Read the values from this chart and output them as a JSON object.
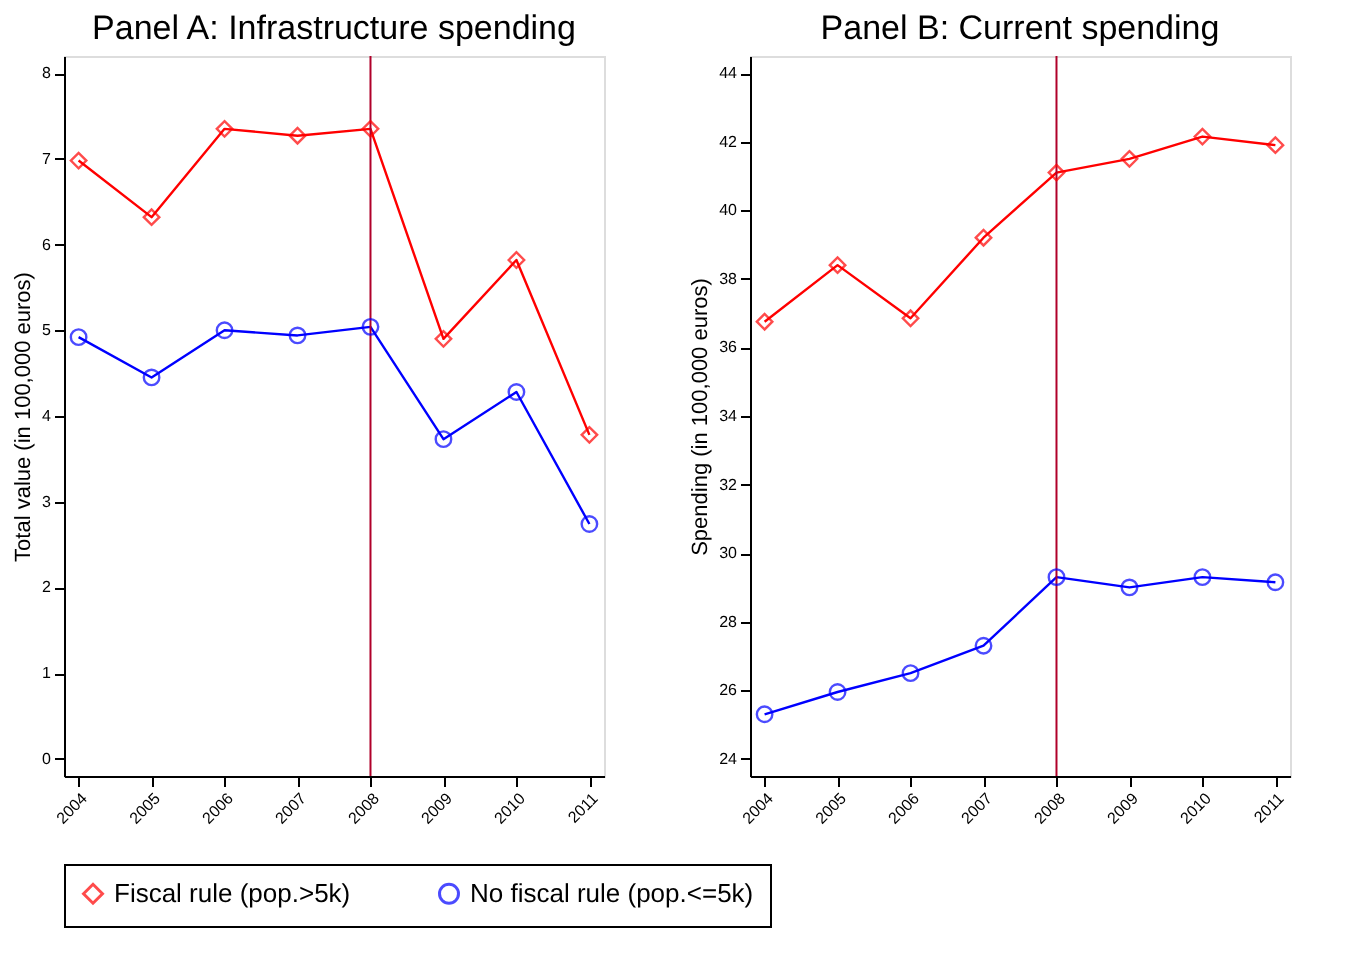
{
  "chart_data": [
    {
      "type": "line",
      "title": "Panel A: Infrastructure spending",
      "ylabel": "Total value (in 100,000 euros)",
      "x": [
        2004,
        2005,
        2006,
        2007,
        2008,
        2009,
        2010,
        2011
      ],
      "series": [
        {
          "name": "Fiscal rule (pop.>5k)",
          "color": "#ff0000",
          "marker": "diamond",
          "values": [
            6.98,
            6.32,
            7.35,
            7.27,
            7.35,
            4.9,
            5.82,
            3.78
          ]
        },
        {
          "name": "No fiscal rule (pop.<=5k)",
          "color": "#0000ff",
          "marker": "circle",
          "values": [
            4.92,
            4.45,
            5.0,
            4.94,
            5.04,
            3.73,
            4.28,
            2.74
          ]
        }
      ],
      "xlim": [
        2003.8,
        2011.2
      ],
      "xticks": [
        2004,
        2005,
        2006,
        2007,
        2008,
        2009,
        2010,
        2011
      ],
      "ylim": [
        -0.2,
        8.2
      ],
      "yticks": [
        0,
        1,
        2,
        3,
        4,
        5,
        6,
        7,
        8
      ],
      "ref_lines": [
        {
          "axis": "x",
          "value": 2008,
          "color": "#b0002a"
        }
      ],
      "grid": false,
      "legend": "bottom",
      "line_style": "solid"
    },
    {
      "type": "line",
      "title": "Panel B: Current spending",
      "ylabel": "Spending (in 100,000 euros)",
      "x": [
        2004,
        2005,
        2006,
        2007,
        2008,
        2009,
        2010,
        2011
      ],
      "series": [
        {
          "name": "Fiscal rule (pop.>5k)",
          "color": "#ff0000",
          "marker": "diamond",
          "values": [
            36.75,
            38.4,
            36.85,
            39.2,
            41.1,
            41.5,
            42.15,
            41.9
          ]
        },
        {
          "name": "No fiscal rule (pop.<=5k)",
          "color": "#0000ff",
          "marker": "circle",
          "values": [
            25.3,
            25.95,
            26.5,
            27.3,
            29.3,
            29.0,
            29.3,
            29.15
          ]
        }
      ],
      "xlim": [
        2003.8,
        2011.2
      ],
      "xticks": [
        2004,
        2005,
        2006,
        2007,
        2008,
        2009,
        2010,
        2011
      ],
      "ylim": [
        23.5,
        44.5
      ],
      "yticks": [
        24,
        26,
        28,
        30,
        32,
        34,
        36,
        38,
        40,
        42,
        44
      ],
      "ref_lines": [
        {
          "axis": "x",
          "value": 2008,
          "color": "#b0002a"
        }
      ],
      "grid": false,
      "legend": "bottom",
      "line_style": "solid"
    }
  ]
}
